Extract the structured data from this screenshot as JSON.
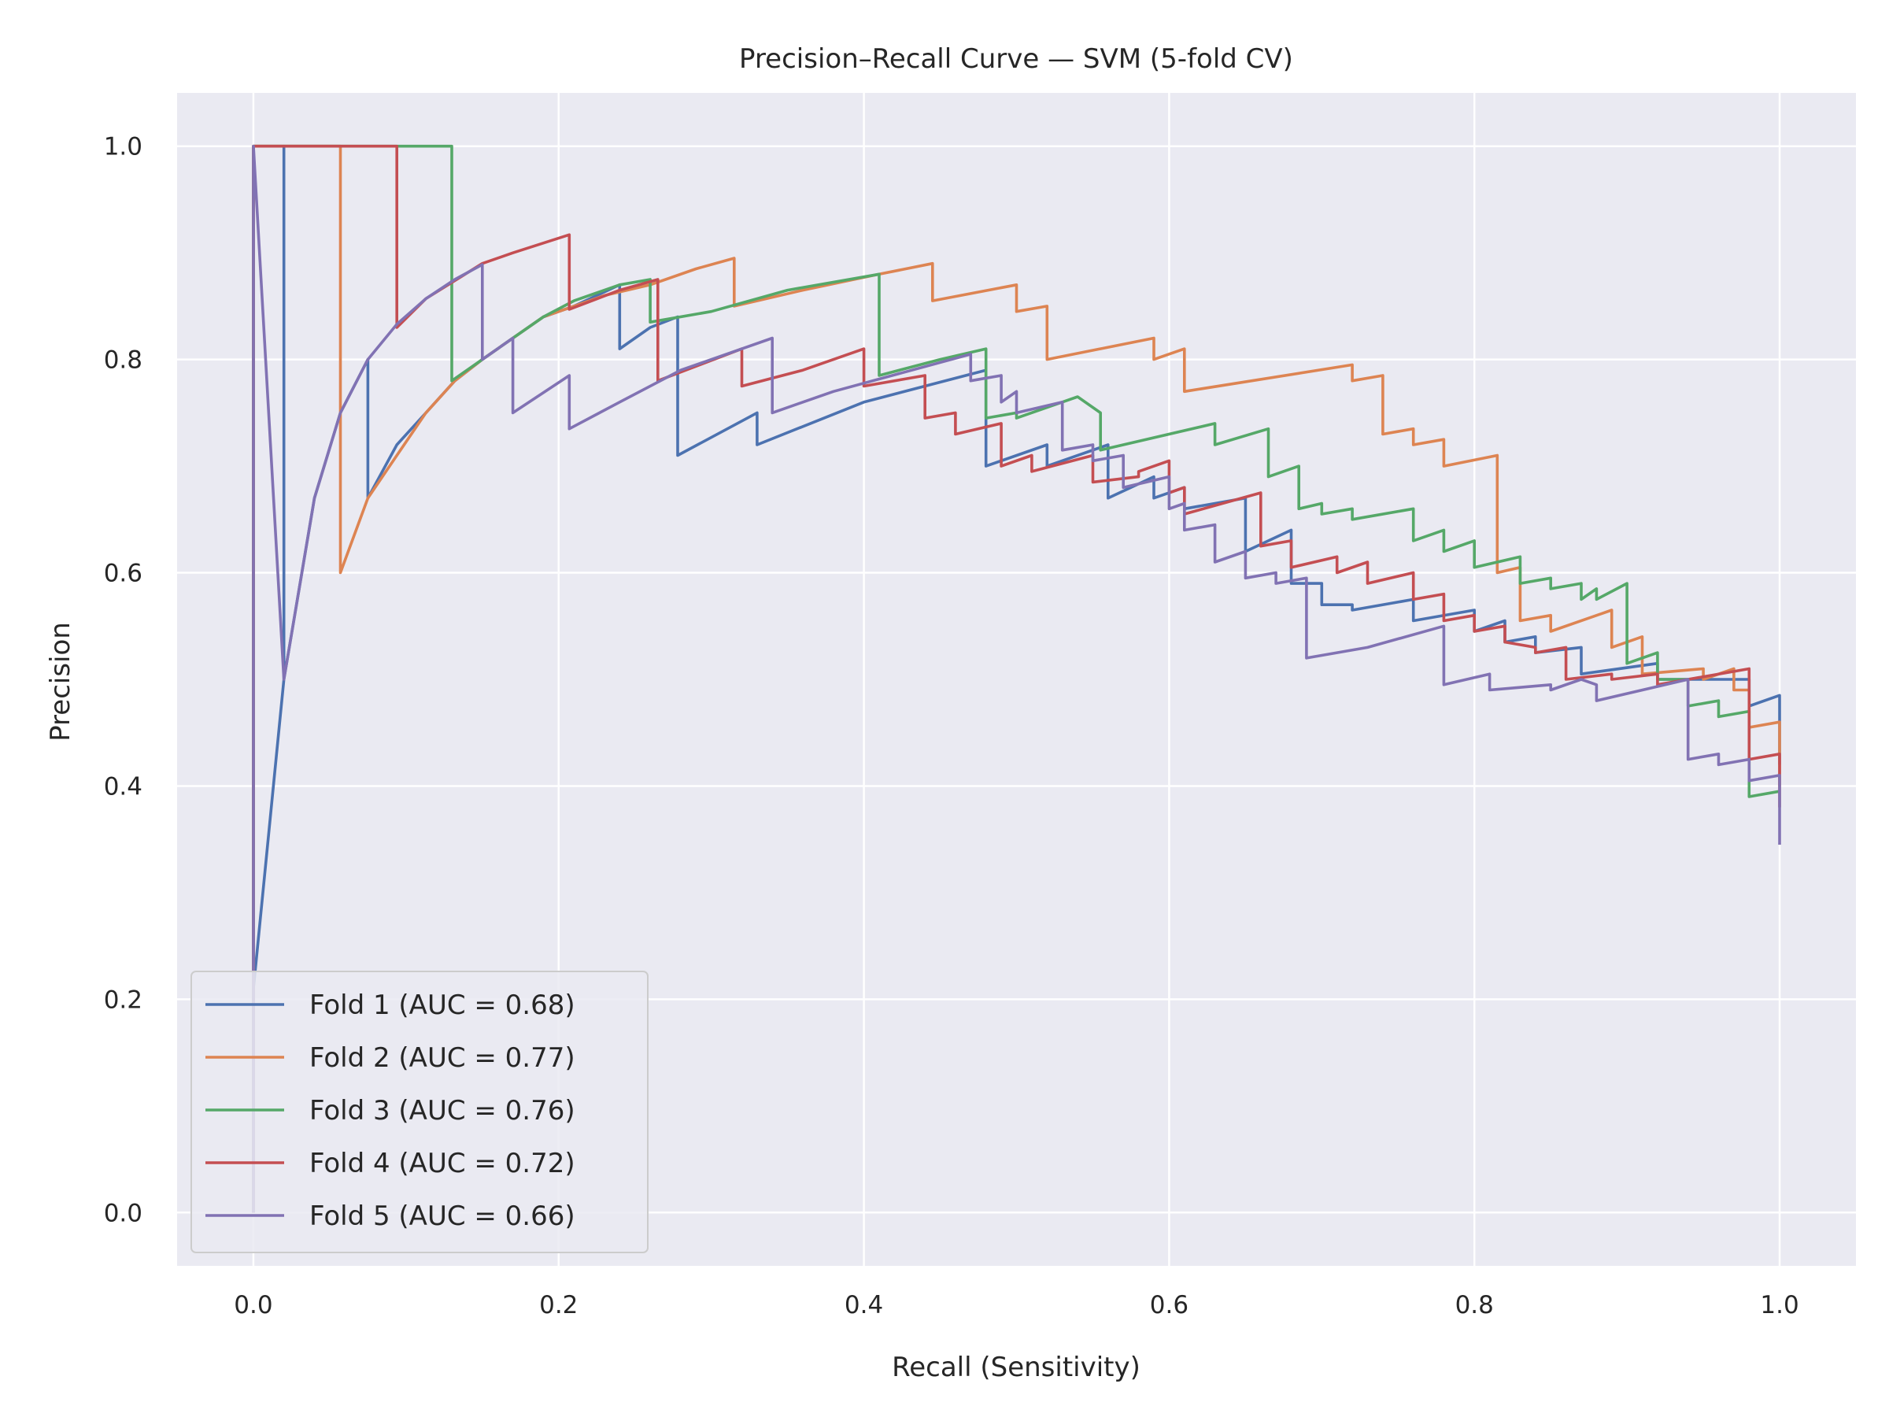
{
  "chart_data": {
    "type": "line",
    "title": "Precision–Recall Curve — SVM (5-fold CV)",
    "xlabel": "Recall (Sensitivity)",
    "ylabel": "Precision",
    "xlim": [
      -0.05,
      1.05
    ],
    "ylim": [
      -0.05,
      1.05
    ],
    "x_ticks": [
      "0.0",
      "0.2",
      "0.4",
      "0.6",
      "0.8",
      "1.0"
    ],
    "y_ticks": [
      "0.0",
      "0.2",
      "0.4",
      "0.6",
      "0.8",
      "1.0"
    ],
    "grid": true,
    "legend_position": "lower-left",
    "series": [
      {
        "name": "Fold 1 (AUC = 0.68)",
        "color": "#4c72b0",
        "points": [
          [
            0,
            0
          ],
          [
            0,
            0.21
          ],
          [
            0.02,
            0.5
          ],
          [
            0.02,
            1.0
          ],
          [
            0.02,
            0.5
          ],
          [
            0.04,
            0.67
          ],
          [
            0.057,
            0.75
          ],
          [
            0.075,
            0.8
          ],
          [
            0.075,
            0.67
          ],
          [
            0.094,
            0.72
          ],
          [
            0.113,
            0.75
          ],
          [
            0.132,
            0.78
          ],
          [
            0.15,
            0.8
          ],
          [
            0.17,
            0.82
          ],
          [
            0.19,
            0.84
          ],
          [
            0.21,
            0.85
          ],
          [
            0.24,
            0.87
          ],
          [
            0.24,
            0.81
          ],
          [
            0.26,
            0.83
          ],
          [
            0.278,
            0.84
          ],
          [
            0.278,
            0.71
          ],
          [
            0.33,
            0.75
          ],
          [
            0.33,
            0.72
          ],
          [
            0.4,
            0.76
          ],
          [
            0.48,
            0.79
          ],
          [
            0.48,
            0.7
          ],
          [
            0.52,
            0.72
          ],
          [
            0.52,
            0.7
          ],
          [
            0.56,
            0.72
          ],
          [
            0.56,
            0.67
          ],
          [
            0.59,
            0.69
          ],
          [
            0.59,
            0.67
          ],
          [
            0.61,
            0.68
          ],
          [
            0.61,
            0.66
          ],
          [
            0.65,
            0.67
          ],
          [
            0.65,
            0.62
          ],
          [
            0.68,
            0.64
          ],
          [
            0.68,
            0.59
          ],
          [
            0.7,
            0.59
          ],
          [
            0.7,
            0.57
          ],
          [
            0.72,
            0.57
          ],
          [
            0.72,
            0.565
          ],
          [
            0.76,
            0.575
          ],
          [
            0.76,
            0.555
          ],
          [
            0.8,
            0.565
          ],
          [
            0.8,
            0.545
          ],
          [
            0.82,
            0.555
          ],
          [
            0.82,
            0.535
          ],
          [
            0.84,
            0.54
          ],
          [
            0.84,
            0.525
          ],
          [
            0.87,
            0.53
          ],
          [
            0.87,
            0.505
          ],
          [
            0.92,
            0.515
          ],
          [
            0.92,
            0.5
          ],
          [
            0.96,
            0.5
          ],
          [
            0.98,
            0.5
          ],
          [
            0.98,
            0.475
          ],
          [
            1.0,
            0.485
          ],
          [
            1.0,
            0.42
          ]
        ]
      },
      {
        "name": "Fold 2 (AUC = 0.77)",
        "color": "#dd8452",
        "points": [
          [
            0,
            0
          ],
          [
            0,
            1.0
          ],
          [
            0.057,
            1.0
          ],
          [
            0.057,
            0.6
          ],
          [
            0.075,
            0.67
          ],
          [
            0.094,
            0.71
          ],
          [
            0.113,
            0.75
          ],
          [
            0.132,
            0.78
          ],
          [
            0.15,
            0.8
          ],
          [
            0.17,
            0.82
          ],
          [
            0.19,
            0.84
          ],
          [
            0.21,
            0.85
          ],
          [
            0.23,
            0.86
          ],
          [
            0.26,
            0.87
          ],
          [
            0.29,
            0.885
          ],
          [
            0.315,
            0.895
          ],
          [
            0.315,
            0.85
          ],
          [
            0.36,
            0.865
          ],
          [
            0.41,
            0.88
          ],
          [
            0.445,
            0.89
          ],
          [
            0.445,
            0.855
          ],
          [
            0.5,
            0.87
          ],
          [
            0.5,
            0.845
          ],
          [
            0.52,
            0.85
          ],
          [
            0.52,
            0.8
          ],
          [
            0.59,
            0.82
          ],
          [
            0.59,
            0.8
          ],
          [
            0.61,
            0.81
          ],
          [
            0.61,
            0.77
          ],
          [
            0.72,
            0.795
          ],
          [
            0.72,
            0.78
          ],
          [
            0.74,
            0.785
          ],
          [
            0.74,
            0.73
          ],
          [
            0.76,
            0.735
          ],
          [
            0.76,
            0.72
          ],
          [
            0.78,
            0.725
          ],
          [
            0.78,
            0.7
          ],
          [
            0.815,
            0.71
          ],
          [
            0.815,
            0.6
          ],
          [
            0.83,
            0.605
          ],
          [
            0.83,
            0.555
          ],
          [
            0.85,
            0.56
          ],
          [
            0.85,
            0.545
          ],
          [
            0.89,
            0.565
          ],
          [
            0.89,
            0.53
          ],
          [
            0.91,
            0.54
          ],
          [
            0.91,
            0.505
          ],
          [
            0.95,
            0.51
          ],
          [
            0.95,
            0.5
          ],
          [
            0.97,
            0.51
          ],
          [
            0.97,
            0.49
          ],
          [
            0.98,
            0.49
          ],
          [
            0.98,
            0.455
          ],
          [
            1.0,
            0.46
          ],
          [
            1.0,
            0.4
          ]
        ]
      },
      {
        "name": "Fold 3 (AUC = 0.76)",
        "color": "#55a868",
        "points": [
          [
            0,
            0
          ],
          [
            0,
            1.0
          ],
          [
            0.13,
            1.0
          ],
          [
            0.13,
            0.78
          ],
          [
            0.15,
            0.8
          ],
          [
            0.17,
            0.82
          ],
          [
            0.19,
            0.84
          ],
          [
            0.21,
            0.855
          ],
          [
            0.24,
            0.87
          ],
          [
            0.26,
            0.875
          ],
          [
            0.26,
            0.835
          ],
          [
            0.3,
            0.845
          ],
          [
            0.35,
            0.865
          ],
          [
            0.41,
            0.88
          ],
          [
            0.41,
            0.785
          ],
          [
            0.45,
            0.8
          ],
          [
            0.48,
            0.81
          ],
          [
            0.48,
            0.745
          ],
          [
            0.5,
            0.75
          ],
          [
            0.5,
            0.745
          ],
          [
            0.54,
            0.765
          ],
          [
            0.555,
            0.75
          ],
          [
            0.555,
            0.715
          ],
          [
            0.63,
            0.74
          ],
          [
            0.63,
            0.72
          ],
          [
            0.665,
            0.735
          ],
          [
            0.665,
            0.69
          ],
          [
            0.685,
            0.7
          ],
          [
            0.685,
            0.66
          ],
          [
            0.7,
            0.665
          ],
          [
            0.7,
            0.655
          ],
          [
            0.72,
            0.66
          ],
          [
            0.72,
            0.65
          ],
          [
            0.76,
            0.66
          ],
          [
            0.76,
            0.63
          ],
          [
            0.78,
            0.64
          ],
          [
            0.78,
            0.62
          ],
          [
            0.8,
            0.63
          ],
          [
            0.8,
            0.605
          ],
          [
            0.83,
            0.615
          ],
          [
            0.83,
            0.59
          ],
          [
            0.85,
            0.595
          ],
          [
            0.85,
            0.585
          ],
          [
            0.87,
            0.59
          ],
          [
            0.87,
            0.575
          ],
          [
            0.88,
            0.585
          ],
          [
            0.88,
            0.575
          ],
          [
            0.9,
            0.59
          ],
          [
            0.9,
            0.515
          ],
          [
            0.92,
            0.525
          ],
          [
            0.92,
            0.5
          ],
          [
            0.94,
            0.5
          ],
          [
            0.94,
            0.475
          ],
          [
            0.96,
            0.48
          ],
          [
            0.96,
            0.465
          ],
          [
            0.98,
            0.47
          ],
          [
            0.98,
            0.39
          ],
          [
            1.0,
            0.395
          ]
        ]
      },
      {
        "name": "Fold 4 (AUC = 0.72)",
        "color": "#c44e52",
        "points": [
          [
            0,
            0
          ],
          [
            0,
            1.0
          ],
          [
            0.094,
            1.0
          ],
          [
            0.094,
            0.83
          ],
          [
            0.113,
            0.857
          ],
          [
            0.15,
            0.89
          ],
          [
            0.17,
            0.9
          ],
          [
            0.207,
            0.917
          ],
          [
            0.207,
            0.847
          ],
          [
            0.24,
            0.865
          ],
          [
            0.265,
            0.875
          ],
          [
            0.265,
            0.78
          ],
          [
            0.32,
            0.81
          ],
          [
            0.32,
            0.775
          ],
          [
            0.36,
            0.79
          ],
          [
            0.4,
            0.81
          ],
          [
            0.4,
            0.775
          ],
          [
            0.44,
            0.785
          ],
          [
            0.44,
            0.745
          ],
          [
            0.46,
            0.75
          ],
          [
            0.46,
            0.73
          ],
          [
            0.49,
            0.74
          ],
          [
            0.49,
            0.7
          ],
          [
            0.51,
            0.71
          ],
          [
            0.51,
            0.695
          ],
          [
            0.55,
            0.71
          ],
          [
            0.55,
            0.685
          ],
          [
            0.58,
            0.69
          ],
          [
            0.58,
            0.695
          ],
          [
            0.6,
            0.705
          ],
          [
            0.6,
            0.675
          ],
          [
            0.61,
            0.68
          ],
          [
            0.61,
            0.655
          ],
          [
            0.66,
            0.675
          ],
          [
            0.66,
            0.625
          ],
          [
            0.68,
            0.63
          ],
          [
            0.68,
            0.605
          ],
          [
            0.71,
            0.615
          ],
          [
            0.71,
            0.6
          ],
          [
            0.73,
            0.61
          ],
          [
            0.73,
            0.59
          ],
          [
            0.76,
            0.6
          ],
          [
            0.76,
            0.575
          ],
          [
            0.78,
            0.58
          ],
          [
            0.78,
            0.555
          ],
          [
            0.8,
            0.56
          ],
          [
            0.8,
            0.545
          ],
          [
            0.82,
            0.55
          ],
          [
            0.82,
            0.535
          ],
          [
            0.84,
            0.53
          ],
          [
            0.84,
            0.525
          ],
          [
            0.86,
            0.53
          ],
          [
            0.86,
            0.5
          ],
          [
            0.89,
            0.505
          ],
          [
            0.89,
            0.5
          ],
          [
            0.92,
            0.505
          ],
          [
            0.92,
            0.495
          ],
          [
            0.98,
            0.51
          ],
          [
            0.98,
            0.425
          ],
          [
            1.0,
            0.43
          ],
          [
            1.0,
            0.38
          ]
        ]
      },
      {
        "name": "Fold 5 (AUC = 0.66)",
        "color": "#8172b3",
        "points": [
          [
            0,
            0
          ],
          [
            0,
            1.0
          ],
          [
            0.02,
            0.5
          ],
          [
            0.04,
            0.67
          ],
          [
            0.057,
            0.75
          ],
          [
            0.075,
            0.8
          ],
          [
            0.094,
            0.833
          ],
          [
            0.113,
            0.857
          ],
          [
            0.132,
            0.875
          ],
          [
            0.15,
            0.889
          ],
          [
            0.15,
            0.8
          ],
          [
            0.17,
            0.82
          ],
          [
            0.17,
            0.75
          ],
          [
            0.207,
            0.785
          ],
          [
            0.207,
            0.735
          ],
          [
            0.24,
            0.76
          ],
          [
            0.28,
            0.79
          ],
          [
            0.32,
            0.81
          ],
          [
            0.34,
            0.82
          ],
          [
            0.34,
            0.75
          ],
          [
            0.38,
            0.77
          ],
          [
            0.47,
            0.805
          ],
          [
            0.47,
            0.78
          ],
          [
            0.49,
            0.785
          ],
          [
            0.49,
            0.76
          ],
          [
            0.5,
            0.77
          ],
          [
            0.5,
            0.75
          ],
          [
            0.53,
            0.76
          ],
          [
            0.53,
            0.715
          ],
          [
            0.55,
            0.72
          ],
          [
            0.55,
            0.705
          ],
          [
            0.57,
            0.71
          ],
          [
            0.57,
            0.68
          ],
          [
            0.6,
            0.69
          ],
          [
            0.6,
            0.66
          ],
          [
            0.61,
            0.665
          ],
          [
            0.61,
            0.64
          ],
          [
            0.63,
            0.645
          ],
          [
            0.63,
            0.61
          ],
          [
            0.65,
            0.62
          ],
          [
            0.65,
            0.595
          ],
          [
            0.67,
            0.6
          ],
          [
            0.67,
            0.59
          ],
          [
            0.69,
            0.595
          ],
          [
            0.69,
            0.52
          ],
          [
            0.73,
            0.53
          ],
          [
            0.78,
            0.55
          ],
          [
            0.78,
            0.495
          ],
          [
            0.81,
            0.505
          ],
          [
            0.81,
            0.49
          ],
          [
            0.85,
            0.495
          ],
          [
            0.85,
            0.49
          ],
          [
            0.87,
            0.5
          ],
          [
            0.88,
            0.495
          ],
          [
            0.88,
            0.48
          ],
          [
            0.94,
            0.5
          ],
          [
            0.94,
            0.425
          ],
          [
            0.96,
            0.43
          ],
          [
            0.96,
            0.42
          ],
          [
            0.98,
            0.425
          ],
          [
            0.98,
            0.405
          ],
          [
            1.0,
            0.41
          ],
          [
            1.0,
            0.345
          ]
        ]
      }
    ]
  }
}
